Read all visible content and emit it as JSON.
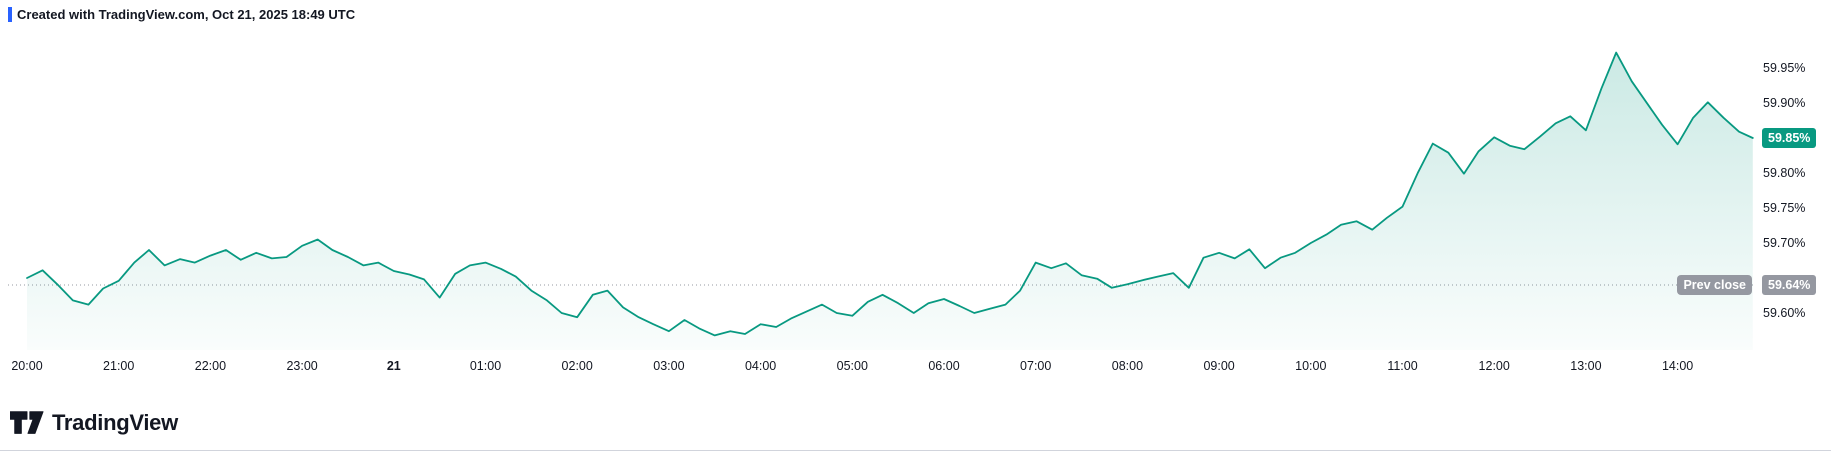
{
  "attribution": {
    "text": "Created with TradingView.com, Oct 21, 2025 18:49 UTC",
    "marker_color": "#2962ff"
  },
  "footer": {
    "brand": "TradingView"
  },
  "colors": {
    "accent": "#089981",
    "badge_gray": "#9598a1",
    "text": "#131722",
    "divider": "#d1d4dc",
    "prev_close_line": "#9598a1"
  },
  "chart_data": {
    "type": "area",
    "title": "",
    "xlabel": "",
    "ylabel": "",
    "grid": false,
    "legend": false,
    "ylim": [
      59.55,
      60.0
    ],
    "x_unit": "hours since 20:00 (Oct 20), ending ~14:49 Oct 21",
    "y_unit": "percent",
    "last": {
      "label": "59.85%",
      "value": 59.85
    },
    "prev_close": {
      "label": "Prev close",
      "value_label": "59.64%",
      "value": 59.64
    },
    "y_ticks": [
      {
        "label": "59.95%",
        "value": 59.95
      },
      {
        "label": "59.90%",
        "value": 59.9
      },
      {
        "label": "59.85%",
        "value": 59.85,
        "hidden": true
      },
      {
        "label": "59.80%",
        "value": 59.8
      },
      {
        "label": "59.75%",
        "value": 59.75
      },
      {
        "label": "59.70%",
        "value": 59.7
      },
      {
        "label": "59.65%",
        "value": 59.65,
        "hidden": true
      },
      {
        "label": "59.60%",
        "value": 59.6
      }
    ],
    "x_ticks": [
      {
        "label": "20:00",
        "t": 0
      },
      {
        "label": "21:00",
        "t": 1
      },
      {
        "label": "22:00",
        "t": 2
      },
      {
        "label": "23:00",
        "t": 3
      },
      {
        "label": "21",
        "t": 4,
        "bold": true
      },
      {
        "label": "01:00",
        "t": 5
      },
      {
        "label": "02:00",
        "t": 6
      },
      {
        "label": "03:00",
        "t": 7
      },
      {
        "label": "04:00",
        "t": 8
      },
      {
        "label": "05:00",
        "t": 9
      },
      {
        "label": "06:00",
        "t": 10
      },
      {
        "label": "07:00",
        "t": 11
      },
      {
        "label": "08:00",
        "t": 12
      },
      {
        "label": "09:00",
        "t": 13
      },
      {
        "label": "10:00",
        "t": 14
      },
      {
        "label": "11:00",
        "t": 15
      },
      {
        "label": "12:00",
        "t": 16
      },
      {
        "label": "13:00",
        "t": 17
      },
      {
        "label": "14:00",
        "t": 18
      }
    ],
    "points": [
      [
        0,
        59.65
      ],
      [
        0.17,
        59.661
      ],
      [
        0.33,
        59.641
      ],
      [
        0.5,
        59.618
      ],
      [
        0.67,
        59.612
      ],
      [
        0.83,
        59.635
      ],
      [
        1,
        59.646
      ],
      [
        1.17,
        59.672
      ],
      [
        1.33,
        59.69
      ],
      [
        1.5,
        59.668
      ],
      [
        1.67,
        59.677
      ],
      [
        1.83,
        59.672
      ],
      [
        2,
        59.682
      ],
      [
        2.17,
        59.69
      ],
      [
        2.33,
        59.676
      ],
      [
        2.5,
        59.686
      ],
      [
        2.67,
        59.678
      ],
      [
        2.83,
        59.68
      ],
      [
        3,
        59.696
      ],
      [
        3.17,
        59.705
      ],
      [
        3.33,
        59.69
      ],
      [
        3.5,
        59.68
      ],
      [
        3.67,
        59.668
      ],
      [
        3.83,
        59.672
      ],
      [
        4,
        59.66
      ],
      [
        4.17,
        59.655
      ],
      [
        4.33,
        59.648
      ],
      [
        4.5,
        59.622
      ],
      [
        4.67,
        59.656
      ],
      [
        4.83,
        59.668
      ],
      [
        5,
        59.672
      ],
      [
        5.17,
        59.663
      ],
      [
        5.33,
        59.652
      ],
      [
        5.5,
        59.632
      ],
      [
        5.67,
        59.618
      ],
      [
        5.83,
        59.6
      ],
      [
        6,
        59.594
      ],
      [
        6.17,
        59.626
      ],
      [
        6.33,
        59.632
      ],
      [
        6.5,
        59.608
      ],
      [
        6.67,
        59.594
      ],
      [
        6.83,
        59.584
      ],
      [
        7,
        59.574
      ],
      [
        7.17,
        59.59
      ],
      [
        7.33,
        59.578
      ],
      [
        7.5,
        59.568
      ],
      [
        7.67,
        59.574
      ],
      [
        7.83,
        59.57
      ],
      [
        8,
        59.584
      ],
      [
        8.17,
        59.58
      ],
      [
        8.33,
        59.592
      ],
      [
        8.5,
        59.602
      ],
      [
        8.67,
        59.612
      ],
      [
        8.83,
        59.6
      ],
      [
        9,
        59.596
      ],
      [
        9.17,
        59.616
      ],
      [
        9.33,
        59.626
      ],
      [
        9.5,
        59.614
      ],
      [
        9.67,
        59.6
      ],
      [
        9.83,
        59.614
      ],
      [
        10,
        59.62
      ],
      [
        10.17,
        59.61
      ],
      [
        10.33,
        59.6
      ],
      [
        10.5,
        59.606
      ],
      [
        10.67,
        59.612
      ],
      [
        10.83,
        59.632
      ],
      [
        11,
        59.672
      ],
      [
        11.17,
        59.664
      ],
      [
        11.33,
        59.671
      ],
      [
        11.5,
        59.654
      ],
      [
        11.67,
        59.649
      ],
      [
        11.83,
        59.636
      ],
      [
        12,
        59.641
      ],
      [
        12.17,
        59.647
      ],
      [
        12.33,
        59.652
      ],
      [
        12.5,
        59.657
      ],
      [
        12.67,
        59.636
      ],
      [
        12.83,
        59.679
      ],
      [
        13,
        59.686
      ],
      [
        13.17,
        59.678
      ],
      [
        13.33,
        59.691
      ],
      [
        13.5,
        59.664
      ],
      [
        13.67,
        59.679
      ],
      [
        13.83,
        59.686
      ],
      [
        14,
        59.7
      ],
      [
        14.17,
        59.712
      ],
      [
        14.33,
        59.726
      ],
      [
        14.5,
        59.731
      ],
      [
        14.67,
        59.719
      ],
      [
        14.83,
        59.736
      ],
      [
        15,
        59.752
      ],
      [
        15.17,
        59.801
      ],
      [
        15.33,
        59.842
      ],
      [
        15.5,
        59.829
      ],
      [
        15.67,
        59.799
      ],
      [
        15.83,
        59.831
      ],
      [
        16,
        59.851
      ],
      [
        16.17,
        59.839
      ],
      [
        16.33,
        59.834
      ],
      [
        16.5,
        59.852
      ],
      [
        16.67,
        59.871
      ],
      [
        16.83,
        59.881
      ],
      [
        17,
        59.861
      ],
      [
        17.17,
        59.921
      ],
      [
        17.33,
        59.972
      ],
      [
        17.5,
        59.931
      ],
      [
        17.67,
        59.899
      ],
      [
        17.83,
        59.869
      ],
      [
        18,
        59.841
      ],
      [
        18.17,
        59.879
      ],
      [
        18.33,
        59.901
      ],
      [
        18.5,
        59.879
      ],
      [
        18.67,
        59.859
      ],
      [
        18.82,
        59.85
      ]
    ]
  }
}
